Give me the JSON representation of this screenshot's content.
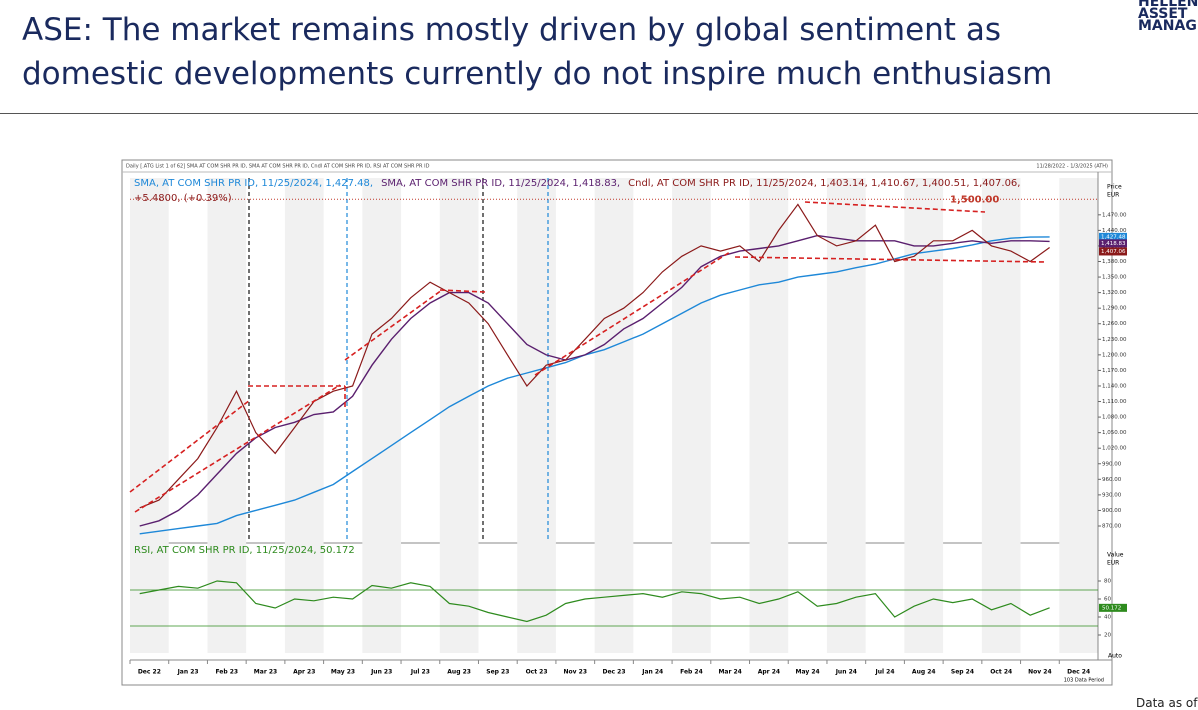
{
  "header": {
    "title_lines": [
      "ASE: The market remains mostly driven by global sentiment as",
      "domestic developments currently do not inspire much enthusiasm"
    ],
    "logo_lines": [
      "HELLENIC",
      "ASSET",
      "MANAGEMENT"
    ]
  },
  "footer": "Data as of",
  "chart_data": {
    "type": "line",
    "caption": "Daily [.ATG List 1 of 62] SMA AT COM SHR PR ID, SMA AT COM SHR PR ID, Cndl AT COM SHR PR ID, RSI AT COM SHR PR ID",
    "date_range": "11/28/2022 - 1/3/2025 (ATH)",
    "axis_title": "Price",
    "axis_unit": "EUR",
    "categories": [
      "Dec 22",
      null,
      "Jan 23",
      null,
      "Feb 23",
      null,
      "Mar 23",
      null,
      "Apr 23",
      null,
      "May 23",
      null,
      "Jun 23",
      null,
      "Jul 23",
      null,
      "Aug 23",
      null,
      "Sep 23",
      null,
      "Oct 23",
      null,
      "Nov 23",
      null,
      "Dec 23",
      null,
      "Jan 24",
      null,
      "Feb 24",
      null,
      "Mar 24",
      null,
      "Apr 24",
      null,
      "May 24",
      null,
      "Jun 24",
      null,
      "Jul 24",
      null,
      "Aug 24",
      null,
      "Sep 24",
      null,
      "Oct 24",
      null,
      "Nov 24",
      null,
      "Dec 24",
      null
    ],
    "series": [
      {
        "name": "SMA, AT COM SHR PR ID, 11/25/2024, 1,427.48,",
        "color": "#1e88d8",
        "last_label": "1,427.48",
        "values": [
          855,
          860,
          865,
          870,
          875,
          890,
          900,
          910,
          920,
          935,
          950,
          975,
          1000,
          1025,
          1050,
          1075,
          1100,
          1120,
          1140,
          1155,
          1165,
          1175,
          1185,
          1200,
          1210,
          1225,
          1240,
          1260,
          1280,
          1300,
          1315,
          1325,
          1335,
          1340,
          1350,
          1355,
          1360,
          1368,
          1375,
          1385,
          1395,
          1400,
          1405,
          1412,
          1420,
          1425,
          1427,
          1427.48,
          null,
          null
        ]
      },
      {
        "name": "SMA, AT COM SHR PR ID, 11/25/2024, 1,418.83,",
        "color": "#5a1f6e",
        "last_label": "1,418.83",
        "values": [
          870,
          880,
          900,
          930,
          970,
          1010,
          1040,
          1060,
          1070,
          1085,
          1090,
          1120,
          1180,
          1230,
          1270,
          1300,
          1320,
          1320,
          1300,
          1260,
          1220,
          1200,
          1190,
          1200,
          1220,
          1250,
          1270,
          1300,
          1330,
          1370,
          1390,
          1400,
          1405,
          1410,
          1420,
          1430,
          1425,
          1420,
          1420,
          1420,
          1410,
          1410,
          1415,
          1420,
          1415,
          1420,
          1420,
          1418.83,
          null,
          null
        ]
      },
      {
        "name": "Cndl, AT COM SHR PR ID, 11/25/2024, 1,403.14, 1,410.67, 1,400.51, 1,407.06,",
        "change_label": "+5.4800, (+0.39%)",
        "color": "#8b1a1a",
        "last_label": "1,407.06",
        "values": [
          905,
          920,
          960,
          1000,
          1060,
          1130,
          1050,
          1010,
          1060,
          1110,
          1130,
          1140,
          1240,
          1270,
          1310,
          1340,
          1320,
          1300,
          1260,
          1200,
          1140,
          1180,
          1190,
          1230,
          1270,
          1290,
          1320,
          1360,
          1390,
          1410,
          1400,
          1410,
          1380,
          1440,
          1490,
          1430,
          1410,
          1420,
          1450,
          1380,
          1390,
          1420,
          1420,
          1440,
          1410,
          1400,
          1380,
          1407.06,
          null,
          null
        ]
      }
    ],
    "ylim": [
      843,
      1541
    ],
    "yticks": [
      {
        "value": 870,
        "label": "870.00"
      },
      {
        "value": 900,
        "label": "900.00"
      },
      {
        "value": 930,
        "label": "930.00"
      },
      {
        "value": 960,
        "label": "960.00"
      },
      {
        "value": 990,
        "label": "990.00"
      },
      {
        "value": 1020,
        "label": "1,020.00"
      },
      {
        "value": 1050,
        "label": "1,050.00"
      },
      {
        "value": 1080,
        "label": "1,080.00"
      },
      {
        "value": 1110,
        "label": "1,110.00"
      },
      {
        "value": 1140,
        "label": "1,140.00"
      },
      {
        "value": 1170,
        "label": "1,170.00"
      },
      {
        "value": 1200,
        "label": "1,200.00"
      },
      {
        "value": 1230,
        "label": "1,230.00"
      },
      {
        "value": 1260,
        "label": "1,260.00"
      },
      {
        "value": 1290,
        "label": "1,290.00"
      },
      {
        "value": 1320,
        "label": "1,320.00"
      },
      {
        "value": 1350,
        "label": "1,350.00"
      },
      {
        "value": 1380,
        "label": "1,380.00"
      },
      {
        "value": 1410,
        "label": "1,410.00"
      },
      {
        "value": 1440,
        "label": "1,440.00"
      },
      {
        "value": 1470,
        "label": "1,470.00"
      }
    ],
    "reference_line": {
      "value": 1500,
      "label": "1,500.00",
      "color": "#c0392b"
    },
    "rsi_panel": {
      "name": "RSI, AT COM SHR PR ID, 11/25/2024, 50.172",
      "color": "#2e8b1e",
      "last_label": "50.172",
      "axis_title": "Value",
      "axis_unit": "EUR",
      "values": [
        66,
        70,
        74,
        72,
        80,
        78,
        55,
        50,
        60,
        58,
        62,
        60,
        75,
        72,
        78,
        74,
        55,
        52,
        45,
        40,
        35,
        42,
        55,
        60,
        62,
        64,
        66,
        62,
        68,
        66,
        60,
        62,
        55,
        60,
        68,
        52,
        55,
        62,
        66,
        40,
        52,
        60,
        56,
        60,
        48,
        55,
        42,
        50.172,
        null,
        null
      ],
      "ylim": [
        0,
        120
      ],
      "yticks": [
        20,
        40,
        60,
        80
      ],
      "levels": [
        30,
        70
      ]
    },
    "scale_mode": "Auto",
    "period_label": "103 Data Period"
  }
}
